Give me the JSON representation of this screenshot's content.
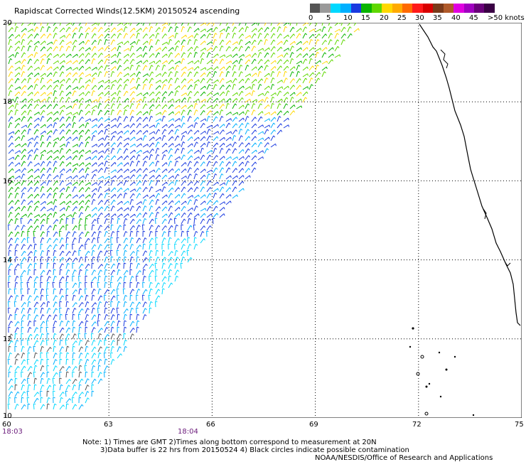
{
  "title": "Rapidscat Corrected Winds(12.5KM) 20150524 ascending",
  "legend": {
    "labels": [
      "0",
      "5",
      "10",
      "15",
      "20",
      "25",
      "30",
      "35",
      "40",
      "45",
      ">50 knots"
    ],
    "colors": [
      "#555555",
      "#9a9a9a",
      "#00d8ff",
      "#00b0ff",
      "#1a3ae0",
      "#0ab400",
      "#5fd800",
      "#ffd800",
      "#ffaa00",
      "#ff6a00",
      "#ff1a1a",
      "#d80000",
      "#7a3a1a",
      "#b05a2a",
      "#e000e0",
      "#a000c0",
      "#6a007a",
      "#3a0044"
    ]
  },
  "axes": {
    "lon_ticks": [
      "60",
      "63",
      "66",
      "69",
      "72",
      "75"
    ],
    "lat_ticks": [
      "20",
      "18",
      "16",
      "14",
      "12",
      "10"
    ]
  },
  "time_labels": [
    "18:03",
    "18:04"
  ],
  "notes": {
    "line1": "Note: 1) Times are GMT 2)Times along bottom correspond to measurement at 20N",
    "line2": "3)Data buffer is 22 hrs from 20150524 4) Black circles indicate possible contamination",
    "line3": "NOAA/NESDIS/Office of Research and Applications"
  }
}
